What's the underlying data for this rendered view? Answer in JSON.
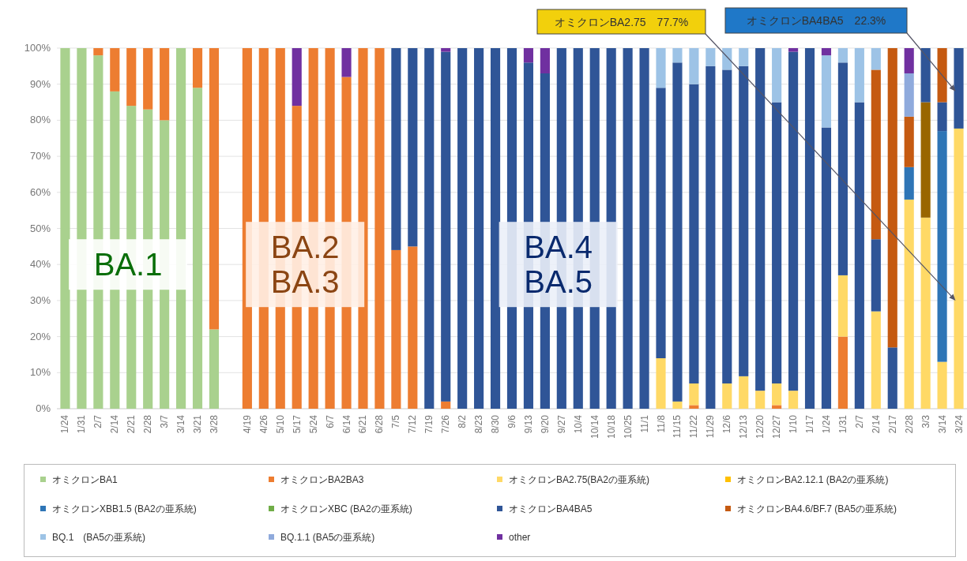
{
  "chart_data": {
    "type": "bar",
    "stacked": true,
    "grid": "y",
    "legend": "bottom",
    "ylim": [
      0,
      100
    ],
    "yticks": [
      {
        "value": 0,
        "label": "0%"
      },
      {
        "value": 10,
        "label": "10%"
      },
      {
        "value": 20,
        "label": "20%"
      },
      {
        "value": 30,
        "label": "30%"
      },
      {
        "value": 40,
        "label": "40%"
      },
      {
        "value": 50,
        "label": "50%"
      },
      {
        "value": 60,
        "label": "60%"
      },
      {
        "value": 70,
        "label": "70%"
      },
      {
        "value": 80,
        "label": "80%"
      },
      {
        "value": 90,
        "label": "90%"
      },
      {
        "value": 100,
        "label": "100%"
      }
    ],
    "categories": [
      "1/24",
      "1/31",
      "2/7",
      "2/14",
      "2/21",
      "2/28",
      "3/7",
      "3/14",
      "3/21",
      "3/28",
      null,
      "4/19",
      "4/26",
      "5/10",
      "5/17",
      "5/24",
      "6/7",
      "6/14",
      "6/21",
      "6/28",
      "7/5",
      "7/12",
      "7/19",
      "7/26",
      "8/2",
      "8/23",
      "8/30",
      "9/6",
      "9/13",
      "9/20",
      "9/27",
      "10/4",
      "10/14",
      "10/18",
      "10/25",
      "11/1",
      "11/8",
      "11/15",
      "11/22",
      "11/29",
      "12/6",
      "12/13",
      "12/20",
      "12/27",
      "1/10",
      "1/17",
      "1/24",
      "1/31",
      "2/7",
      "2/14",
      "2/17",
      "2/28",
      "3/3",
      "3/14",
      "3/24"
    ],
    "series": [
      {
        "name": "オミクロンBA1",
        "color": "#a9d18e",
        "values": [
          100,
          100,
          98,
          88,
          84,
          83,
          80,
          100,
          89,
          22,
          null,
          0,
          0,
          0,
          0,
          0,
          0,
          0,
          0,
          0,
          0,
          0,
          0,
          0,
          0,
          0,
          0,
          0,
          0,
          0,
          0,
          0,
          0,
          0,
          0,
          0,
          0,
          0,
          0,
          0,
          0,
          0,
          0,
          0,
          0,
          0,
          0,
          0,
          0,
          0,
          0,
          0,
          0,
          0,
          0
        ]
      },
      {
        "name": "オミクロンBA2BA3",
        "color": "#ed7d31",
        "values": [
          0,
          0,
          2,
          12,
          16,
          17,
          20,
          0,
          11,
          78,
          null,
          100,
          100,
          100,
          84,
          100,
          100,
          92,
          100,
          100,
          44,
          45,
          0,
          2,
          0,
          0,
          0,
          0,
          0,
          0,
          0,
          0,
          0,
          0,
          0,
          0,
          0,
          0,
          1,
          0,
          0,
          0,
          0,
          1,
          0,
          0,
          0,
          20,
          0,
          0,
          0,
          0,
          0,
          0,
          0
        ]
      },
      {
        "name": "オミクロンBA2.75(BA2の亜系統)",
        "color": "#ffd966",
        "values": [
          0,
          0,
          0,
          0,
          0,
          0,
          0,
          0,
          0,
          0,
          null,
          0,
          0,
          0,
          0,
          0,
          0,
          0,
          0,
          0,
          0,
          0,
          0,
          0,
          0,
          0,
          0,
          0,
          0,
          0,
          0,
          0,
          0,
          0,
          0,
          0,
          14,
          2,
          6,
          0,
          7,
          9,
          5,
          6,
          5,
          0,
          0,
          17,
          0,
          27,
          0,
          58,
          53,
          13,
          77.7
        ]
      },
      {
        "name": "オミクロンBA2.12.1 (BA2の亜系統)",
        "color": "#ffc000",
        "values": [
          0,
          0,
          0,
          0,
          0,
          0,
          0,
          0,
          0,
          0,
          null,
          0,
          0,
          0,
          0,
          0,
          0,
          0,
          0,
          0,
          0,
          0,
          0,
          0,
          0,
          0,
          0,
          0,
          0,
          0,
          0,
          0,
          0,
          0,
          0,
          0,
          0,
          0,
          0,
          0,
          0,
          0,
          0,
          0,
          0,
          0,
          0,
          0,
          0,
          0,
          0,
          0,
          0,
          0,
          0
        ]
      },
      {
        "name": "オミクロンXBB1.5 (BA2の亜系統)",
        "color": "#2e75b6",
        "values": [
          0,
          0,
          0,
          0,
          0,
          0,
          0,
          0,
          0,
          0,
          null,
          0,
          0,
          0,
          0,
          0,
          0,
          0,
          0,
          0,
          0,
          0,
          0,
          0,
          0,
          0,
          0,
          0,
          0,
          0,
          0,
          0,
          0,
          0,
          0,
          0,
          0,
          0,
          0,
          0,
          0,
          0,
          0,
          0,
          0,
          0,
          0,
          0,
          0,
          0,
          0,
          9,
          0,
          64,
          0
        ]
      },
      {
        "name": "オミクロンXBC (BA2の亜系統)",
        "color": "#70ad47",
        "values": [
          0,
          0,
          0,
          0,
          0,
          0,
          0,
          0,
          0,
          0,
          null,
          0,
          0,
          0,
          0,
          0,
          0,
          0,
          0,
          0,
          0,
          0,
          0,
          0,
          0,
          0,
          0,
          0,
          0,
          0,
          0,
          0,
          0,
          0,
          0,
          0,
          0,
          0,
          0,
          0,
          0,
          0,
          0,
          0,
          0,
          0,
          0,
          0,
          0,
          0,
          0,
          0,
          0,
          0,
          0
        ]
      },
      {
        "color": "#996600",
        "values": [
          0,
          0,
          0,
          0,
          0,
          0,
          0,
          0,
          0,
          0,
          null,
          0,
          0,
          0,
          0,
          0,
          0,
          0,
          0,
          0,
          0,
          0,
          0,
          0,
          0,
          0,
          0,
          0,
          0,
          0,
          0,
          0,
          0,
          0,
          0,
          0,
          0,
          0,
          0,
          0,
          0,
          0,
          0,
          0,
          0,
          0,
          0,
          0,
          0,
          0,
          0,
          0,
          32,
          0,
          0
        ]
      },
      {
        "name": "オミクロンBA4BA5",
        "color": "#2f5597",
        "values": [
          0,
          0,
          0,
          0,
          0,
          0,
          0,
          0,
          0,
          0,
          null,
          0,
          0,
          0,
          0,
          0,
          0,
          0,
          0,
          0,
          56,
          55,
          100,
          97,
          100,
          100,
          100,
          100,
          96,
          93,
          100,
          100,
          100,
          100,
          100,
          100,
          75,
          94,
          83,
          95,
          87,
          86,
          95,
          78,
          94,
          100,
          78,
          59,
          85,
          20,
          17,
          0,
          15,
          8,
          22.3
        ]
      },
      {
        "name": "オミクロンBA4.6/BF.7 (BA5の亜系統)",
        "color": "#c55a11",
        "values": [
          0,
          0,
          0,
          0,
          0,
          0,
          0,
          0,
          0,
          0,
          null,
          0,
          0,
          0,
          0,
          0,
          0,
          0,
          0,
          0,
          0,
          0,
          0,
          0,
          0,
          0,
          0,
          0,
          0,
          0,
          0,
          0,
          0,
          0,
          0,
          0,
          0,
          0,
          0,
          0,
          0,
          0,
          0,
          0,
          0,
          0,
          0,
          0,
          0,
          47,
          83,
          14,
          0,
          15,
          0
        ]
      },
      {
        "name": "BQ.1　(BA5の亜系統)",
        "color": "#9dc3e6",
        "values": [
          0,
          0,
          0,
          0,
          0,
          0,
          0,
          0,
          0,
          0,
          null,
          0,
          0,
          0,
          0,
          0,
          0,
          0,
          0,
          0,
          0,
          0,
          0,
          0,
          0,
          0,
          0,
          0,
          0,
          0,
          0,
          0,
          0,
          0,
          0,
          0,
          11,
          4,
          10,
          5,
          6,
          5,
          0,
          15,
          0,
          0,
          20,
          4,
          15,
          6,
          0,
          0,
          0,
          0,
          0
        ]
      },
      {
        "name": "BQ.1.1 (BA5の亜系統)",
        "color": "#8faadc",
        "values": [
          0,
          0,
          0,
          0,
          0,
          0,
          0,
          0,
          0,
          0,
          null,
          0,
          0,
          0,
          0,
          0,
          0,
          0,
          0,
          0,
          0,
          0,
          0,
          0,
          0,
          0,
          0,
          0,
          0,
          0,
          0,
          0,
          0,
          0,
          0,
          0,
          0,
          0,
          0,
          0,
          0,
          0,
          0,
          0,
          0,
          0,
          0,
          0,
          0,
          0,
          0,
          12,
          0,
          0,
          0
        ]
      },
      {
        "name": "other",
        "color": "#7030a0",
        "values": [
          0,
          0,
          0,
          0,
          0,
          0,
          0,
          0,
          0,
          0,
          null,
          0,
          0,
          0,
          16,
          0,
          0,
          8,
          0,
          0,
          0,
          0,
          0,
          1,
          0,
          0,
          0,
          0,
          4,
          7,
          0,
          0,
          0,
          0,
          0,
          0,
          0,
          0,
          0,
          0,
          0,
          0,
          0,
          0,
          1,
          0,
          2,
          0,
          0,
          0,
          0,
          7,
          0,
          0,
          0
        ]
      }
    ],
    "annotations": [
      "BA.1",
      "BA.2\nBA.3",
      "BA.4\nBA.5",
      "オミクロンBA2.75　77.7%",
      "オミクロンBA4BA5　22.3%"
    ]
  }
}
